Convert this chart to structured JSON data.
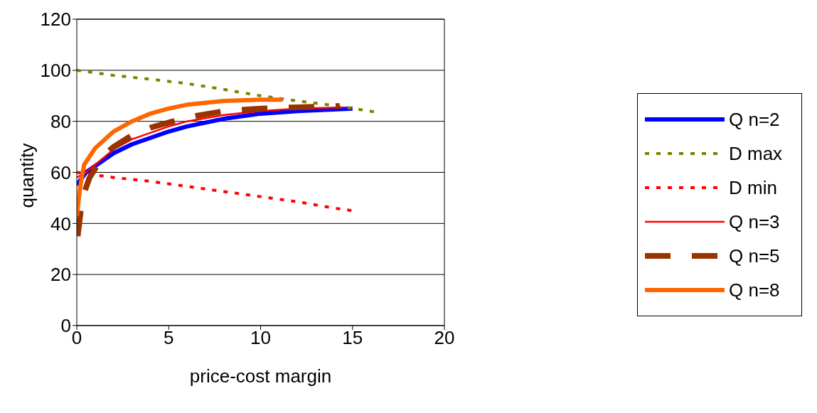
{
  "chart_data": {
    "type": "line",
    "xlabel": "price-cost margin",
    "ylabel": "quantity",
    "xlim": [
      0,
      20
    ],
    "xticks": [
      0,
      5,
      10,
      15,
      20
    ],
    "ylim": [
      0,
      120
    ],
    "yticks": [
      0,
      20,
      40,
      60,
      80,
      100,
      120
    ],
    "grid": "y",
    "legend": "right",
    "marker": "none",
    "series": [
      {
        "name": "Q n=2",
        "color": "#0000ff",
        "line_style": "solid",
        "x": [
          0,
          0.5,
          1,
          2,
          3,
          4,
          5,
          6,
          8,
          10,
          12,
          15
        ],
        "values": [
          55,
          60,
          62.5,
          67.5,
          71,
          73.5,
          76,
          78,
          81,
          83,
          84,
          85
        ]
      },
      {
        "name": "D max",
        "color": "#808000",
        "line_style": "dotted",
        "x": [
          0,
          2,
          4,
          6,
          8,
          10,
          12,
          14,
          16.3
        ],
        "values": [
          100,
          98,
          96.5,
          94.8,
          92.5,
          90,
          88,
          86.2,
          83.6
        ]
      },
      {
        "name": "D min",
        "color": "#ff0000",
        "line_style": "dotted",
        "x": [
          0,
          2,
          4,
          6,
          8,
          10,
          12,
          14,
          15
        ],
        "values": [
          60,
          58,
          56.5,
          54.5,
          52.5,
          50.5,
          48.5,
          46,
          45
        ]
      },
      {
        "name": "Q n=3",
        "color": "#ff0000",
        "line_style": "solid",
        "x": [
          0,
          0.5,
          1,
          2,
          3,
          4,
          5,
          6,
          8,
          10,
          12,
          14.5
        ],
        "values": [
          58,
          60,
          63,
          69,
          73,
          75.5,
          78,
          80,
          82.5,
          84,
          85,
          85.5
        ]
      },
      {
        "name": "Q n=5",
        "color": "#993300",
        "line_style": "dashed",
        "x": [
          0.05,
          0.3,
          0.7,
          1.5,
          2,
          3,
          4,
          5,
          6,
          8,
          10,
          12,
          14.3
        ],
        "values": [
          35,
          50,
          58,
          67,
          70,
          74.5,
          77.5,
          79.5,
          81.5,
          84,
          85,
          85.5,
          86
        ]
      },
      {
        "name": "Q n=8",
        "color": "#ff6600",
        "line_style": "solid",
        "x": [
          0,
          0.2,
          0.4,
          1,
          2,
          3,
          4,
          5,
          6,
          8,
          10,
          11.2
        ],
        "values": [
          43,
          55,
          63,
          69.5,
          76,
          80,
          83,
          85,
          86.5,
          88,
          88.5,
          88.5
        ]
      }
    ]
  }
}
